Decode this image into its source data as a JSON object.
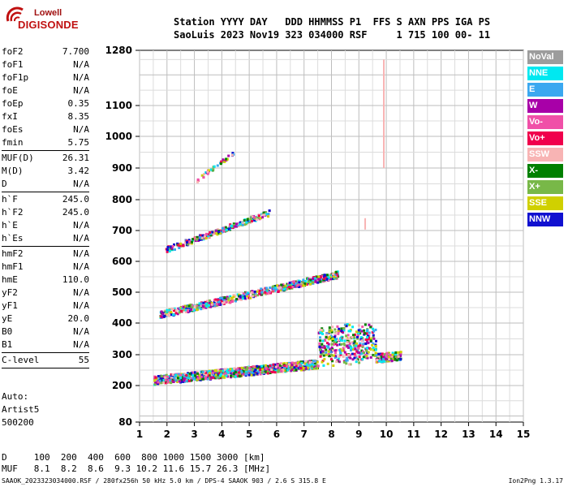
{
  "brand": {
    "line1": "Lowell",
    "line2": "DIGISONDE"
  },
  "header": {
    "line1": "Station YYYY DAY   DDD HHMMSS P1  FFS S AXN PPS IGA PS",
    "line2": "SaoLuis 2023 Nov19 323 034000 RSF     1 715 100 00- 11"
  },
  "params": [
    {
      "name": "foF2",
      "value": "7.700",
      "sep_after": false
    },
    {
      "name": "foF1",
      "value": "N/A",
      "sep_after": false
    },
    {
      "name": "foF1p",
      "value": "N/A",
      "sep_after": false
    },
    {
      "name": "foE",
      "value": "N/A",
      "sep_after": false
    },
    {
      "name": "foEp",
      "value": "0.35",
      "sep_after": false
    },
    {
      "name": "fxI",
      "value": "8.35",
      "sep_after": false
    },
    {
      "name": "foEs",
      "value": "N/A",
      "sep_after": false
    },
    {
      "name": "fmin",
      "value": "5.75",
      "sep_after": true
    },
    {
      "name": "MUF(D)",
      "value": "26.31",
      "sep_after": false
    },
    {
      "name": "M(D)",
      "value": "3.42",
      "sep_after": false
    },
    {
      "name": "D",
      "value": "N/A",
      "sep_after": true
    },
    {
      "name": "h`F",
      "value": "245.0",
      "sep_after": false
    },
    {
      "name": "h`F2",
      "value": "245.0",
      "sep_after": false
    },
    {
      "name": "h`E",
      "value": "N/A",
      "sep_after": false
    },
    {
      "name": "h`Es",
      "value": "N/A",
      "sep_after": true
    },
    {
      "name": "hmF2",
      "value": "N/A",
      "sep_after": false
    },
    {
      "name": "hmF1",
      "value": "N/A",
      "sep_after": false
    },
    {
      "name": "hmE",
      "value": "110.0",
      "sep_after": false
    },
    {
      "name": "yF2",
      "value": "N/A",
      "sep_after": false
    },
    {
      "name": "yF1",
      "value": "N/A",
      "sep_after": false
    },
    {
      "name": "yE",
      "value": "20.0",
      "sep_after": false
    },
    {
      "name": "B0",
      "value": "N/A",
      "sep_after": false
    },
    {
      "name": "B1",
      "value": "N/A",
      "sep_after": true
    },
    {
      "name": "C-level",
      "value": "55",
      "sep_after": true
    }
  ],
  "autoscale": {
    "line1": "Auto:",
    "line2": "Artist5",
    "line3": "500200"
  },
  "legend": [
    {
      "label": "NoVal",
      "color": "#9c9c9c"
    },
    {
      "label": "NNE",
      "color": "#00e8f0"
    },
    {
      "label": "E",
      "color": "#3aa8f0"
    },
    {
      "label": "W",
      "color": "#a800a8"
    },
    {
      "label": "Vo-",
      "color": "#f050a8"
    },
    {
      "label": "Vo+",
      "color": "#f0004c"
    },
    {
      "label": "SSW",
      "color": "#f8b4b4"
    },
    {
      "label": "X-",
      "color": "#008000"
    },
    {
      "label": "X+",
      "color": "#78b848"
    },
    {
      "label": "SSE",
      "color": "#d0d000"
    },
    {
      "label": "NNW",
      "color": "#1010d0"
    }
  ],
  "chart_data": {
    "type": "scatter",
    "xlim": [
      1,
      15
    ],
    "x_ticks": [
      1,
      2,
      3,
      4,
      5,
      6,
      7,
      8,
      9,
      10,
      11,
      12,
      13,
      14,
      15
    ],
    "y_ticks": [
      80,
      200,
      300,
      400,
      500,
      600,
      700,
      800,
      900,
      1000,
      1100,
      1280
    ],
    "y_scale": "nonlinear (compressed near 80 km)",
    "grid": true,
    "series_description_traces": [
      {
        "name": "E",
        "x_range": [
          1.5,
          10.5
        ],
        "y_start": 220,
        "y_end": 300
      },
      {
        "name": "E",
        "x_range": [
          1.7,
          8.2
        ],
        "y_start": 430,
        "y_end": 560
      },
      {
        "name": "E",
        "x_range": [
          1.9,
          5.7
        ],
        "y_start": 640,
        "y_end": 760
      },
      {
        "name": "E",
        "x_range": [
          3.0,
          4.4
        ],
        "y_start": 860,
        "y_end": 950
      }
    ]
  },
  "bottom": {
    "line1": "D     100  200  400  600  800 1000 1500 3000 [km]",
    "line2": "MUF   8.1  8.2  8.6  9.3 10.2 11.6 15.7 26.3 [MHz]"
  },
  "footer": "SAAOK_2023323034000.RSF / 280fx256h 50 kHz 5.0 km / DPS-4 SAAOK 903 / 2.6 S 315.8 E",
  "version": "Ion2Png 1.3.17"
}
